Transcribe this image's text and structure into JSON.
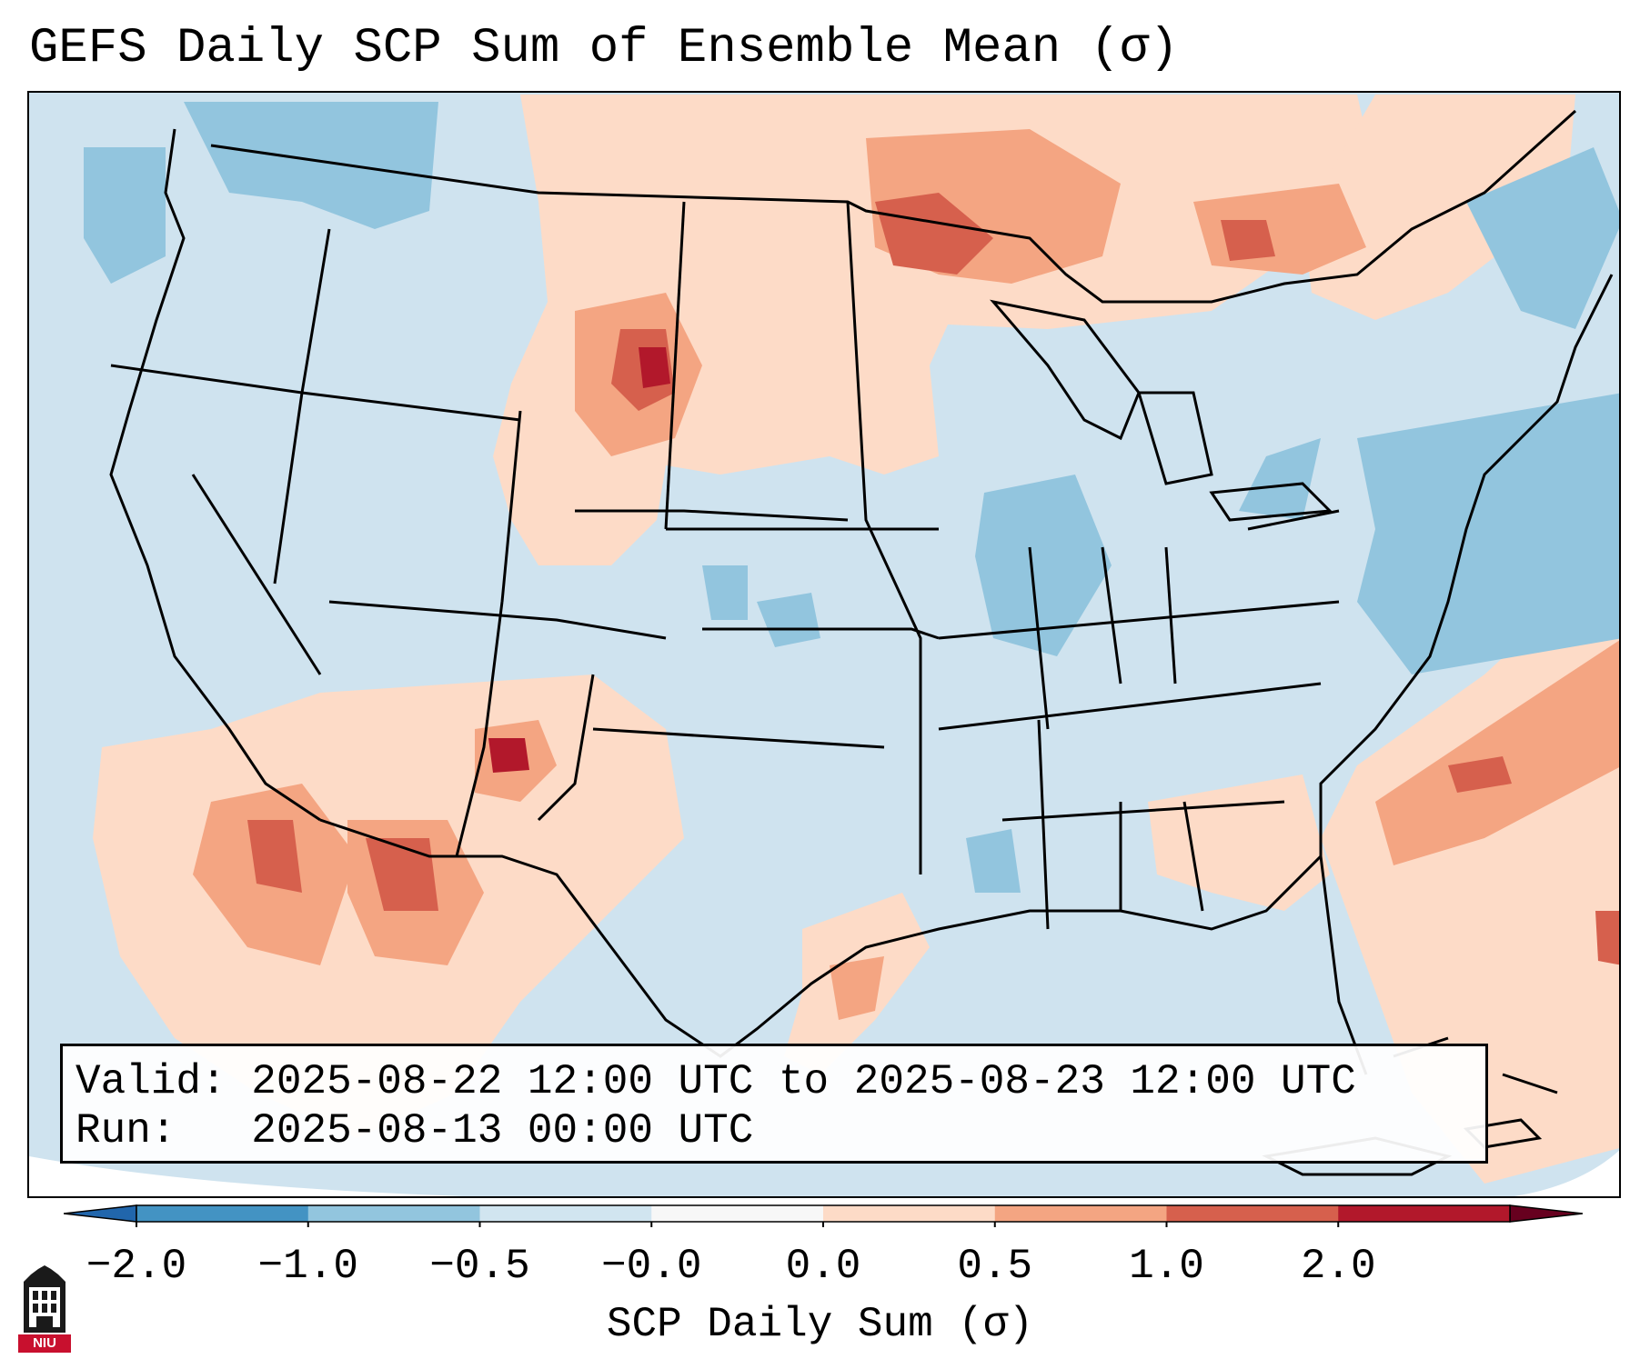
{
  "title": "GEFS Daily SCP Sum of Ensemble Mean (σ)",
  "info": {
    "valid_label": "Valid:",
    "valid_value": "2025-08-22 12:00 UTC to 2025-08-23 12:00 UTC",
    "run_label": "Run:",
    "run_value": "2025-08-13 00:00 UTC"
  },
  "colorbar": {
    "title": "SCP Daily Sum (σ)",
    "ticks": [
      "−2.0",
      "−1.0",
      "−0.5",
      "−0.0",
      "0.0",
      "0.5",
      "1.0",
      "2.0"
    ],
    "colors": [
      "#4393c3",
      "#92c5de",
      "#d1e5f0",
      "#f7f7f7",
      "#fddbc7",
      "#f4a582",
      "#d6604d",
      "#b2182b"
    ],
    "under_color": "#2166ac",
    "over_color": "#67001f"
  },
  "logo": {
    "text": "NIU",
    "icon": "university-tower-icon"
  }
}
